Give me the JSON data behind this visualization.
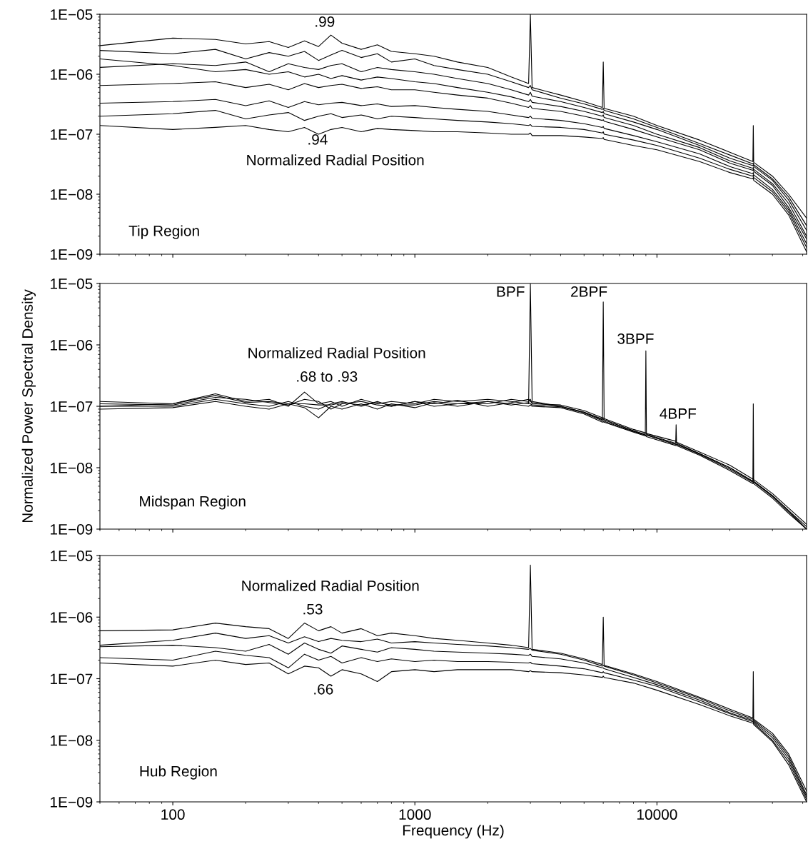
{
  "chart_data": [
    {
      "type": "line",
      "log": "xy",
      "tick_labels": "y",
      "xlim": [
        50,
        41500
      ],
      "ylim": [
        1e-09,
        1e-05
      ],
      "xticks": [
        {
          "value": 100,
          "label": null
        },
        {
          "value": 1000,
          "label": null
        },
        {
          "value": 10000,
          "label": null
        }
      ],
      "yticks": [
        {
          "value": 1e-09,
          "label": "1E−09"
        },
        {
          "value": 1e-08,
          "label": "1E−08"
        },
        {
          "value": 1e-07,
          "label": "1E−07"
        },
        {
          "value": 1e-06,
          "label": "1E−06"
        },
        {
          "value": 1e-05,
          "label": "1E−05"
        }
      ],
      "x": [
        50,
        100,
        150,
        200,
        250,
        300,
        350,
        400,
        450,
        500,
        600,
        700,
        800,
        1000,
        1200,
        1500,
        2000,
        2500,
        2950,
        3000,
        3050,
        4000,
        5000,
        5950,
        6000,
        6050,
        8000,
        10000,
        15000,
        20000,
        24900,
        25000,
        25100,
        30000,
        35000,
        41500
      ],
      "series": [
        {
          "color": "#000000",
          "values": [
            3e-06,
            4e-06,
            3.8e-06,
            3.2e-06,
            3.5e-06,
            2.8e-06,
            3.6e-06,
            2.9e-06,
            4.5e-06,
            3.3e-06,
            2.6e-06,
            3.1e-06,
            2.4e-06,
            2.2e-06,
            2e-06,
            1.6e-06,
            1.3e-06,
            9e-07,
            7e-07,
            1e-05,
            6e-07,
            4.5e-07,
            3.5e-07,
            2.8e-07,
            1.6e-06,
            2.7e-07,
            2e-07,
            1.4e-07,
            8e-08,
            5e-08,
            3.5e-08,
            1.4e-07,
            3.4e-08,
            2e-08,
            1e-08,
            4e-09
          ]
        },
        {
          "color": "#000000",
          "values": [
            2.5e-06,
            2.2e-06,
            2.6e-06,
            1.8e-06,
            2.3e-06,
            2e-06,
            2.4e-06,
            1.7e-06,
            2.1e-06,
            2.5e-06,
            1.9e-06,
            2.2e-06,
            1.6e-06,
            1.8e-06,
            1.4e-06,
            1.2e-06,
            1e-06,
            7.5e-07,
            6e-07,
            6.5e-07,
            5.5e-07,
            4e-07,
            3.2e-07,
            2.6e-07,
            2.7e-07,
            2.5e-07,
            1.8e-07,
            1.3e-07,
            7e-08,
            4.5e-08,
            3.2e-08,
            3.3e-08,
            3.1e-08,
            1.8e-08,
            9e-09,
            3e-09
          ]
        },
        {
          "color": "#000000",
          "values": [
            1.3e-06,
            1.5e-06,
            1.4e-06,
            1.6e-06,
            1.1e-06,
            1.5e-06,
            1.3e-06,
            1.2e-06,
            1.4e-06,
            1.5e-06,
            1.1e-06,
            1.3e-06,
            1.2e-06,
            1.1e-06,
            1e-06,
            8.5e-07,
            7e-07,
            5.5e-07,
            4.5e-07,
            5e-07,
            4.3e-07,
            3.5e-07,
            2.8e-07,
            2.3e-07,
            2.4e-07,
            2.2e-07,
            1.6e-07,
            1.2e-07,
            6.5e-08,
            4e-08,
            3e-08,
            3.1e-08,
            2.9e-08,
            1.7e-08,
            8e-09,
            2.5e-09
          ]
        },
        {
          "color": "#000000",
          "values": [
            1.8e-06,
            1.4e-06,
            1.1e-06,
            1.2e-06,
            1e-06,
            1.1e-06,
            9e-07,
            1e-06,
            8.5e-07,
            9.5e-07,
            8e-07,
            9e-07,
            8.5e-07,
            7.5e-07,
            7e-07,
            6e-07,
            5e-07,
            4.2e-07,
            3.5e-07,
            3.8e-07,
            3.4e-07,
            2.9e-07,
            2.4e-07,
            2e-07,
            2.1e-07,
            1.9e-07,
            1.4e-07,
            1e-07,
            6e-08,
            3.6e-08,
            2.7e-08,
            2.8e-08,
            2.6e-08,
            1.5e-08,
            7e-09,
            2e-09
          ]
        },
        {
          "color": "#000000",
          "values": [
            6.5e-07,
            7e-07,
            7.5e-07,
            6e-07,
            6.8e-07,
            5.5e-07,
            7e-07,
            6e-07,
            6.5e-07,
            6.8e-07,
            5.8e-07,
            6.2e-07,
            5.5e-07,
            5.5e-07,
            5e-07,
            4.5e-07,
            4e-07,
            3.3e-07,
            2.8e-07,
            3e-07,
            2.7e-07,
            2.4e-07,
            2e-07,
            1.7e-07,
            1.75e-07,
            1.65e-07,
            1.2e-07,
            9e-08,
            5.5e-08,
            3.3e-08,
            2.5e-08,
            2.6e-08,
            2.4e-08,
            1.4e-08,
            6e-09,
            1.8e-09
          ]
        },
        {
          "color": "#000000",
          "values": [
            3.3e-07,
            3.5e-07,
            3.8e-07,
            3e-07,
            3.6e-07,
            2.8e-07,
            3.5e-07,
            3.1e-07,
            3.3e-07,
            3.4e-07,
            3e-07,
            3.2e-07,
            2.9e-07,
            3e-07,
            2.8e-07,
            2.6e-07,
            2.4e-07,
            2.1e-07,
            1.9e-07,
            2e-07,
            1.85e-07,
            1.7e-07,
            1.5e-07,
            1.3e-07,
            1.35e-07,
            1.25e-07,
            9.5e-08,
            7.5e-08,
            4.7e-08,
            2.9e-08,
            2.2e-08,
            2.3e-08,
            2.1e-08,
            1.2e-08,
            5.5e-09,
            1.5e-09
          ]
        },
        {
          "color": "#000000",
          "values": [
            2e-07,
            2.2e-07,
            2.5e-07,
            1.8e-07,
            2.1e-07,
            2.3e-07,
            1.7e-07,
            2e-07,
            2.2e-07,
            1.9e-07,
            2.1e-07,
            1.8e-07,
            2e-07,
            1.9e-07,
            1.8e-07,
            1.7e-07,
            1.6e-07,
            1.5e-07,
            1.4e-07,
            1.45e-07,
            1.35e-07,
            1.3e-07,
            1.2e-07,
            1.05e-07,
            1.1e-07,
            1e-07,
            8e-08,
            6.5e-08,
            4e-08,
            2.6e-08,
            2e-08,
            2.1e-08,
            1.9e-08,
            1.1e-08,
            5e-09,
            1.3e-09
          ]
        },
        {
          "color": "#000000",
          "values": [
            1.4e-07,
            1.2e-07,
            1.3e-07,
            1.4e-07,
            1.2e-07,
            1.1e-07,
            1.3e-07,
            1e-07,
            1.2e-07,
            1.3e-07,
            1.1e-07,
            1.25e-07,
            1.2e-07,
            1.15e-07,
            1.1e-07,
            1.1e-07,
            1.05e-07,
            1e-07,
            1e-07,
            1.05e-07,
            9.5e-08,
            9.5e-08,
            9e-08,
            8.5e-08,
            8.8e-08,
            8.2e-08,
            6.5e-08,
            5.5e-08,
            3.5e-08,
            2.3e-08,
            1.8e-08,
            1.9e-08,
            1.7e-08,
            1e-08,
            4.5e-09,
            1.1e-09
          ]
        }
      ],
      "annotations": [
        ".99",
        ".94",
        "Normalized Radial Position",
        "Tip Region"
      ]
    },
    {
      "type": "line",
      "log": "xy",
      "tick_labels": "y",
      "xlim": [
        50,
        41500
      ],
      "ylim": [
        1e-09,
        1e-05
      ],
      "ylabel": "Normalized Power Spectral Density",
      "xticks": [
        {
          "value": 100,
          "label": null
        },
        {
          "value": 1000,
          "label": null
        },
        {
          "value": 10000,
          "label": null
        }
      ],
      "yticks": [
        {
          "value": 1e-09,
          "label": "1E−09"
        },
        {
          "value": 1e-08,
          "label": "1E−08"
        },
        {
          "value": 1e-07,
          "label": "1E−07"
        },
        {
          "value": 1e-06,
          "label": "1E−06"
        },
        {
          "value": 1e-05,
          "label": "1E−05"
        }
      ],
      "x": [
        50,
        100,
        150,
        200,
        250,
        300,
        350,
        400,
        450,
        500,
        600,
        700,
        800,
        1000,
        1200,
        1500,
        2000,
        2500,
        2950,
        3000,
        3050,
        4000,
        5000,
        5950,
        6000,
        6050,
        8000,
        8950,
        9000,
        9050,
        11950,
        12000,
        12050,
        15000,
        20000,
        24900,
        25000,
        25100,
        30000,
        35000,
        41500
      ],
      "series": [
        {
          "color": "#000000",
          "values": [
            1.2e-07,
            1.1e-07,
            1.6e-07,
            1.2e-07,
            1.3e-07,
            1e-07,
            1.7e-07,
            1.1e-07,
            1.2e-07,
            1e-07,
            1.3e-07,
            1.1e-07,
            1.2e-07,
            1.1e-07,
            1.3e-07,
            1.2e-07,
            1.3e-07,
            1.2e-07,
            1.1e-07,
            1e-05,
            1.2e-07,
            1e-07,
            8e-08,
            6e-08,
            5e-06,
            6e-08,
            4e-08,
            3.5e-08,
            8e-07,
            3.5e-08,
            2.5e-08,
            5e-08,
            2.5e-08,
            1.7e-08,
            1e-08,
            6e-09,
            1.1e-07,
            6e-09,
            3.5e-09,
            2e-09,
            1e-09
          ]
        },
        {
          "color": "#000000",
          "values": [
            1e-07,
            1e-07,
            1.3e-07,
            1.1e-07,
            1e-07,
            1.2e-07,
            1e-07,
            9e-08,
            1.1e-07,
            1.2e-07,
            1e-07,
            1.2e-07,
            1e-07,
            1.2e-07,
            1e-07,
            1.1e-07,
            1.1e-07,
            1.3e-07,
            1.2e-07,
            1.3e-07,
            1.1e-07,
            1.05e-07,
            8.5e-08,
            6.5e-08,
            6.5e-08,
            6.3e-08,
            4.2e-08,
            3.7e-08,
            3.7e-08,
            3.6e-08,
            2.7e-08,
            2.7e-08,
            2.6e-08,
            1.8e-08,
            1.1e-08,
            6.5e-09,
            6.6e-09,
            6.4e-09,
            3.8e-09,
            2.2e-09,
            1.2e-09
          ]
        },
        {
          "color": "#000000",
          "values": [
            9e-08,
            9.5e-08,
            1.2e-07,
            1e-07,
            9e-08,
            1.1e-07,
            9.5e-08,
            6.5e-08,
            1e-07,
            9e-08,
            1.1e-07,
            9e-08,
            1.1e-07,
            9.5e-08,
            1.15e-07,
            1e-07,
            1.2e-07,
            1.1e-07,
            1e-07,
            1.05e-07,
            1e-07,
            9.5e-08,
            7.5e-08,
            5.5e-08,
            5.6e-08,
            5.5e-08,
            3.8e-08,
            3.3e-08,
            3.3e-08,
            3.2e-08,
            2.3e-08,
            2.3e-08,
            2.3e-08,
            1.6e-08,
            9e-09,
            5.5e-09,
            5.6e-09,
            5.5e-09,
            3.2e-09,
            1.8e-09,
            1e-09
          ]
        },
        {
          "color": "#000000",
          "values": [
            1.1e-07,
            1.05e-07,
            1.4e-07,
            1.3e-07,
            1.15e-07,
            1.05e-07,
            1.3e-07,
            1.2e-07,
            9e-08,
            1.1e-07,
            1.2e-07,
            1.05e-07,
            1e-07,
            1.2e-07,
            1.1e-07,
            1.25e-07,
            1e-07,
            1.15e-07,
            1.3e-07,
            1.2e-07,
            1.15e-07,
            1e-07,
            8e-08,
            6.2e-08,
            6.2e-08,
            6e-08,
            4e-08,
            3.4e-08,
            3.4e-08,
            3.4e-08,
            2.4e-08,
            2.4e-08,
            2.4e-08,
            1.7e-08,
            1e-08,
            6e-09,
            6e-09,
            6e-09,
            3.5e-09,
            2e-09,
            1.1e-09
          ]
        },
        {
          "color": "#000000",
          "values": [
            1e-07,
            1.1e-07,
            1.5e-07,
            1.15e-07,
            1.2e-07,
            1.1e-07,
            1.1e-07,
            1.05e-07,
            1.05e-07,
            1.15e-07,
            1.05e-07,
            1.15e-07,
            1.05e-07,
            1.05e-07,
            1.2e-07,
            1.1e-07,
            1.2e-07,
            1.05e-07,
            1.15e-07,
            1.1e-07,
            1.05e-07,
            9.8e-08,
            7.8e-08,
            5.8e-08,
            5.8e-08,
            5.7e-08,
            3.9e-08,
            3.4e-08,
            3.4e-08,
            3.4e-08,
            2.4e-08,
            2.4e-08,
            2.4e-08,
            1.65e-08,
            9.5e-09,
            5.8e-09,
            5.8e-09,
            5.8e-09,
            3.4e-09,
            1.9e-09,
            1e-09
          ]
        }
      ],
      "annotations": [
        "BPF",
        "2BPF",
        "3BPF",
        "4BPF",
        "Normalized Radial Position",
        ".68 to .93",
        "Midspan Region"
      ]
    },
    {
      "type": "line",
      "log": "xy",
      "xlim": [
        50,
        41500
      ],
      "ylim": [
        1e-09,
        1e-05
      ],
      "xlabel": "Frequency (Hz)",
      "xticks": [
        100,
        1000,
        10000
      ],
      "yticks": [
        {
          "value": 1e-09,
          "label": "1E−09"
        },
        {
          "value": 1e-08,
          "label": "1E−08"
        },
        {
          "value": 1e-07,
          "label": "1E−07"
        },
        {
          "value": 1e-06,
          "label": "1E−06"
        },
        {
          "value": 1e-05,
          "label": "1E−05"
        }
      ],
      "x": [
        50,
        100,
        150,
        200,
        250,
        300,
        350,
        400,
        450,
        500,
        600,
        700,
        800,
        1000,
        1200,
        1500,
        2000,
        2500,
        2950,
        3000,
        3050,
        4000,
        5000,
        5950,
        6000,
        6050,
        8000,
        10000,
        15000,
        20000,
        24900,
        25000,
        25100,
        30000,
        35000,
        41500
      ],
      "series": [
        {
          "color": "#000000",
          "values": [
            6e-07,
            6.2e-07,
            8e-07,
            7e-07,
            6.5e-07,
            4.5e-07,
            8e-07,
            6e-07,
            7e-07,
            5.5e-07,
            6.5e-07,
            5e-07,
            5.5e-07,
            5e-07,
            4.5e-07,
            4.2e-07,
            3.8e-07,
            3.5e-07,
            3.2e-07,
            7e-06,
            3e-07,
            2.6e-07,
            2.1e-07,
            1.7e-07,
            1e-06,
            1.65e-07,
            1.2e-07,
            9e-08,
            5e-08,
            3.2e-08,
            2.3e-08,
            1.3e-07,
            2.2e-08,
            1.3e-08,
            6e-09,
            1.5e-09
          ]
        },
        {
          "color": "#000000",
          "values": [
            3.5e-07,
            4.2e-07,
            5.5e-07,
            4.5e-07,
            5e-07,
            3.8e-07,
            4.8e-07,
            4e-07,
            4.5e-07,
            4.2e-07,
            4e-07,
            4.4e-07,
            3.8e-07,
            4e-07,
            3.8e-07,
            3.6e-07,
            3.4e-07,
            3.2e-07,
            3e-07,
            3.1e-07,
            2.9e-07,
            2.5e-07,
            2e-07,
            1.6e-07,
            1.65e-07,
            1.6e-07,
            1.15e-07,
            8.5e-08,
            4.8e-08,
            3e-08,
            2.2e-08,
            2.25e-08,
            2.1e-08,
            1.2e-08,
            5.5e-09,
            1.3e-09
          ]
        },
        {
          "color": "#000000",
          "values": [
            3.3e-07,
            3.5e-07,
            3.2e-07,
            2.8e-07,
            3.6e-07,
            2.5e-07,
            3.8e-07,
            3e-07,
            2.6e-07,
            3.4e-07,
            3e-07,
            2.7e-07,
            3.2e-07,
            3e-07,
            2.8e-07,
            2.7e-07,
            2.6e-07,
            2.5e-07,
            2.4e-07,
            2.5e-07,
            2.3e-07,
            2.1e-07,
            1.8e-07,
            1.5e-07,
            1.5e-07,
            1.45e-07,
            1.05e-07,
            8e-08,
            4.5e-08,
            2.8e-08,
            2.1e-08,
            2.1e-08,
            2e-08,
            1.1e-08,
            5e-09,
            1.2e-09
          ]
        },
        {
          "color": "#000000",
          "values": [
            2.2e-07,
            2e-07,
            2.8e-07,
            2.4e-07,
            2.2e-07,
            1.5e-07,
            2.5e-07,
            2e-07,
            2.3e-07,
            1.8e-07,
            2.2e-07,
            1.9e-07,
            2.1e-07,
            1.9e-07,
            2e-07,
            1.9e-07,
            1.9e-07,
            1.85e-07,
            1.8e-07,
            1.85e-07,
            1.75e-07,
            1.6e-07,
            1.45e-07,
            1.25e-07,
            1.3e-07,
            1.25e-07,
            9.5e-08,
            7.5e-08,
            4.2e-08,
            2.7e-08,
            2e-08,
            2e-08,
            1.9e-08,
            1e-08,
            4.5e-09,
            1.1e-09
          ]
        },
        {
          "color": "#000000",
          "values": [
            1.8e-07,
            1.6e-07,
            2e-07,
            1.7e-07,
            1.8e-07,
            1.2e-07,
            1.6e-07,
            1.5e-07,
            1.1e-07,
            1.4e-07,
            1.2e-07,
            9e-08,
            1.3e-07,
            1.4e-07,
            1.3e-07,
            1.4e-07,
            1.4e-07,
            1.4e-07,
            1.3e-07,
            1.35e-07,
            1.3e-07,
            1.25e-07,
            1.15e-07,
            1.05e-07,
            1.1e-07,
            1.05e-07,
            8.5e-08,
            6.5e-08,
            3.8e-08,
            2.5e-08,
            1.9e-08,
            1.9e-08,
            1.8e-08,
            9.5e-09,
            4e-09,
            1e-09
          ]
        }
      ],
      "annotations": [
        "Normalized Radial Position",
        ".53",
        ".66",
        "Hub Region"
      ]
    }
  ]
}
